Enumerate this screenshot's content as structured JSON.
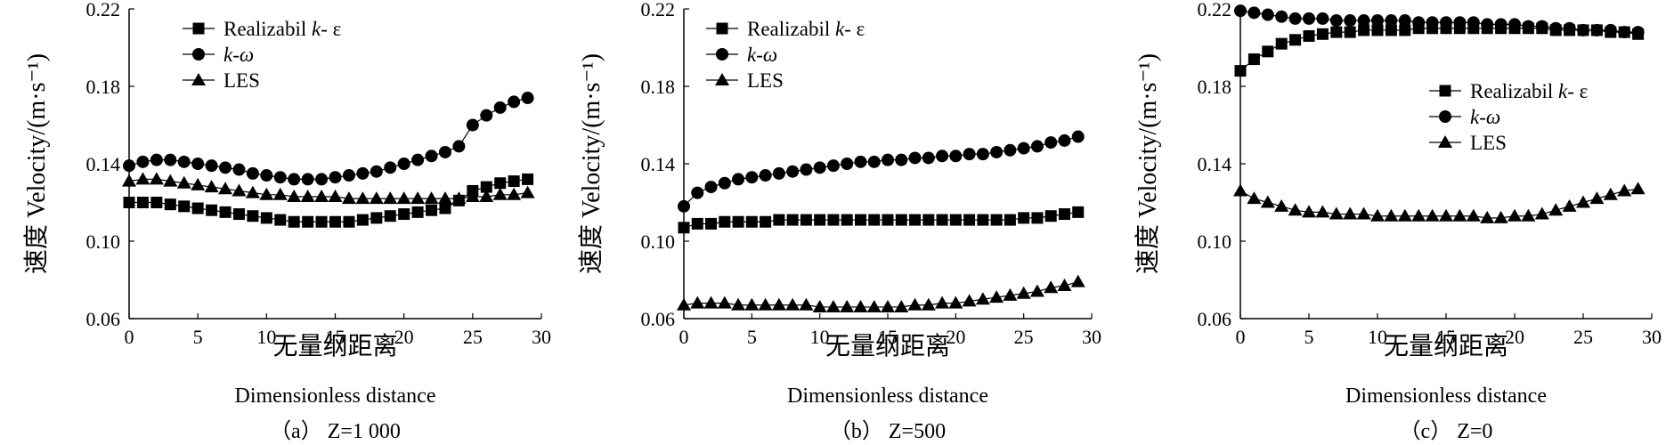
{
  "chart_data": [
    {
      "type": "line",
      "caption": "（a） Z=1 000",
      "xlabel_cn": "无量纲距离",
      "xlabel_en": "Dimensionless distance",
      "ylabel": "速度 Velocity/(m·s⁻¹)",
      "xlim": [
        0,
        30
      ],
      "ylim": [
        0.06,
        0.22
      ],
      "x_ticks": [
        "0",
        "5",
        "10",
        "15",
        "20",
        "25",
        "30"
      ],
      "y_ticks": [
        "0.06",
        "0.10",
        "0.14",
        "0.18",
        "0.22"
      ],
      "legend_position": "top-left",
      "x": [
        0,
        1,
        2,
        3,
        4,
        5,
        6,
        7,
        8,
        9,
        10,
        11,
        12,
        13,
        14,
        15,
        16,
        17,
        18,
        19,
        20,
        21,
        22,
        23,
        24,
        25,
        26,
        27,
        28,
        29
      ],
      "series": [
        {
          "name": "Realizabil k- ε",
          "marker": "square",
          "values": [
            0.12,
            0.12,
            0.12,
            0.119,
            0.118,
            0.117,
            0.116,
            0.115,
            0.114,
            0.113,
            0.112,
            0.111,
            0.11,
            0.11,
            0.11,
            0.11,
            0.11,
            0.111,
            0.112,
            0.113,
            0.114,
            0.115,
            0.116,
            0.117,
            0.121,
            0.126,
            0.128,
            0.13,
            0.131,
            0.132
          ]
        },
        {
          "name": "k-ω",
          "marker": "circle",
          "values": [
            0.139,
            0.141,
            0.142,
            0.142,
            0.141,
            0.14,
            0.139,
            0.138,
            0.137,
            0.135,
            0.134,
            0.133,
            0.132,
            0.132,
            0.132,
            0.133,
            0.134,
            0.135,
            0.136,
            0.138,
            0.14,
            0.142,
            0.144,
            0.146,
            0.149,
            0.16,
            0.165,
            0.169,
            0.172,
            0.174
          ]
        },
        {
          "name": "LES",
          "marker": "triangle",
          "values": [
            0.131,
            0.132,
            0.132,
            0.131,
            0.13,
            0.129,
            0.128,
            0.127,
            0.126,
            0.125,
            0.124,
            0.124,
            0.123,
            0.123,
            0.123,
            0.123,
            0.122,
            0.122,
            0.122,
            0.122,
            0.122,
            0.122,
            0.122,
            0.122,
            0.122,
            0.123,
            0.123,
            0.124,
            0.124,
            0.125
          ]
        }
      ]
    },
    {
      "type": "line",
      "caption": "（b） Z=500",
      "xlabel_cn": "无量纲距离",
      "xlabel_en": "Dimensionless distance",
      "ylabel": "速度 Velocity/(m·s⁻¹)",
      "xlim": [
        0,
        30
      ],
      "ylim": [
        0.06,
        0.22
      ],
      "x_ticks": [
        "0",
        "5",
        "10",
        "15",
        "20",
        "25",
        "30"
      ],
      "y_ticks": [
        "0.06",
        "0.10",
        "0.14",
        "0.18",
        "0.22"
      ],
      "legend_position": "top-left",
      "x": [
        0,
        1,
        2,
        3,
        4,
        5,
        6,
        7,
        8,
        9,
        10,
        11,
        12,
        13,
        14,
        15,
        16,
        17,
        18,
        19,
        20,
        21,
        22,
        23,
        24,
        25,
        26,
        27,
        28,
        29
      ],
      "series": [
        {
          "name": "Realizabil k- ε",
          "marker": "square",
          "values": [
            0.107,
            0.109,
            0.109,
            0.11,
            0.11,
            0.11,
            0.11,
            0.111,
            0.111,
            0.111,
            0.111,
            0.111,
            0.111,
            0.111,
            0.111,
            0.111,
            0.111,
            0.111,
            0.111,
            0.111,
            0.111,
            0.111,
            0.111,
            0.111,
            0.111,
            0.112,
            0.112,
            0.113,
            0.114,
            0.115
          ]
        },
        {
          "name": "k-ω",
          "marker": "circle",
          "values": [
            0.118,
            0.125,
            0.128,
            0.13,
            0.132,
            0.133,
            0.134,
            0.135,
            0.136,
            0.137,
            0.138,
            0.139,
            0.14,
            0.141,
            0.141,
            0.142,
            0.142,
            0.143,
            0.143,
            0.144,
            0.144,
            0.145,
            0.145,
            0.146,
            0.147,
            0.148,
            0.149,
            0.151,
            0.152,
            0.154
          ]
        },
        {
          "name": "LES",
          "marker": "triangle",
          "values": [
            0.067,
            0.068,
            0.068,
            0.068,
            0.067,
            0.067,
            0.067,
            0.067,
            0.067,
            0.067,
            0.066,
            0.066,
            0.066,
            0.066,
            0.066,
            0.066,
            0.066,
            0.067,
            0.067,
            0.068,
            0.068,
            0.069,
            0.07,
            0.071,
            0.072,
            0.073,
            0.074,
            0.076,
            0.077,
            0.079
          ]
        }
      ]
    },
    {
      "type": "line",
      "caption": "（c） Z=0",
      "xlabel_cn": "无量纲距离",
      "xlabel_en": "Dimensionless distance",
      "ylabel": "速度 Velocity/(m·s⁻¹)",
      "xlim": [
        0,
        30
      ],
      "ylim": [
        0.06,
        0.22
      ],
      "x_ticks": [
        "0",
        "5",
        "10",
        "15",
        "20",
        "25",
        "30"
      ],
      "y_ticks": [
        "0.06",
        "0.10",
        "0.14",
        "0.18",
        "0.22"
      ],
      "legend_position": "center-right",
      "x": [
        0,
        1,
        2,
        3,
        4,
        5,
        6,
        7,
        8,
        9,
        10,
        11,
        12,
        13,
        14,
        15,
        16,
        17,
        18,
        19,
        20,
        21,
        22,
        23,
        24,
        25,
        26,
        27,
        28,
        29
      ],
      "series": [
        {
          "name": "Realizabil k- ε",
          "marker": "square",
          "values": [
            0.188,
            0.194,
            0.198,
            0.202,
            0.204,
            0.206,
            0.207,
            0.208,
            0.208,
            0.209,
            0.209,
            0.209,
            0.209,
            0.21,
            0.21,
            0.21,
            0.21,
            0.21,
            0.21,
            0.21,
            0.21,
            0.21,
            0.21,
            0.209,
            0.209,
            0.209,
            0.209,
            0.208,
            0.208,
            0.207
          ]
        },
        {
          "name": "k-ω",
          "marker": "circle",
          "values": [
            0.219,
            0.218,
            0.217,
            0.216,
            0.215,
            0.215,
            0.215,
            0.214,
            0.214,
            0.214,
            0.214,
            0.214,
            0.214,
            0.213,
            0.213,
            0.213,
            0.213,
            0.213,
            0.212,
            0.212,
            0.212,
            0.211,
            0.211,
            0.21,
            0.21,
            0.209,
            0.209,
            0.209,
            0.208,
            0.208
          ]
        },
        {
          "name": "LES",
          "marker": "triangle",
          "values": [
            0.126,
            0.122,
            0.12,
            0.118,
            0.116,
            0.115,
            0.115,
            0.114,
            0.114,
            0.114,
            0.113,
            0.113,
            0.113,
            0.113,
            0.113,
            0.113,
            0.113,
            0.113,
            0.112,
            0.112,
            0.113,
            0.113,
            0.114,
            0.116,
            0.118,
            0.12,
            0.122,
            0.124,
            0.126,
            0.127
          ]
        }
      ]
    }
  ]
}
